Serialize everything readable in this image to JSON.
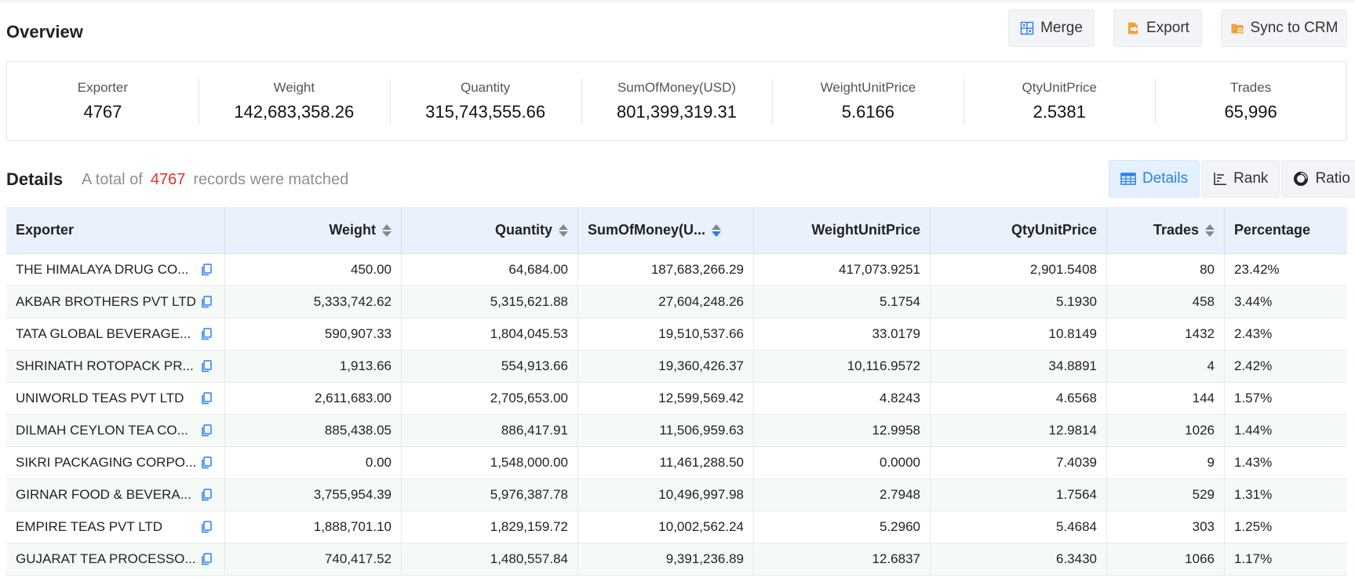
{
  "overview": {
    "title": "Overview",
    "buttons": {
      "merge": "Merge",
      "export": "Export",
      "sync": "Sync to CRM"
    },
    "stats": [
      {
        "label": "Exporter",
        "value": "4767"
      },
      {
        "label": "Weight",
        "value": "142,683,358.26"
      },
      {
        "label": "Quantity",
        "value": "315,743,555.66"
      },
      {
        "label": "SumOfMoney(USD)",
        "value": "801,399,319.31"
      },
      {
        "label": "WeightUnitPrice",
        "value": "5.6166"
      },
      {
        "label": "QtyUnitPrice",
        "value": "2.5381"
      },
      {
        "label": "Trades",
        "value": "65,996"
      }
    ]
  },
  "details": {
    "title": "Details",
    "note_prefix": "A total of",
    "count": "4767",
    "note_suffix": "records were matched",
    "tabs": {
      "details": "Details",
      "rank": "Rank",
      "ratio": "Ratio"
    }
  },
  "table": {
    "headers": [
      "Exporter",
      "Weight",
      "Quantity",
      "SumOfMoney(U...",
      "WeightUnitPrice",
      "QtyUnitPrice",
      "Trades",
      "Percentage"
    ],
    "rows": [
      [
        "THE HIMALAYA DRUG CO...",
        "450.00",
        "64,684.00",
        "187,683,266.29",
        "417,073.9251",
        "2,901.5408",
        "80",
        "23.42%"
      ],
      [
        "AKBAR BROTHERS PVT LTD",
        "5,333,742.62",
        "5,315,621.88",
        "27,604,248.26",
        "5.1754",
        "5.1930",
        "458",
        "3.44%"
      ],
      [
        "TATA GLOBAL BEVERAGE...",
        "590,907.33",
        "1,804,045.53",
        "19,510,537.66",
        "33.0179",
        "10.8149",
        "1432",
        "2.43%"
      ],
      [
        "SHRINATH ROTOPACK PR...",
        "1,913.66",
        "554,913.66",
        "19,360,426.37",
        "10,116.9572",
        "34.8891",
        "4",
        "2.42%"
      ],
      [
        "UNIWORLD TEAS PVT LTD",
        "2,611,683.00",
        "2,705,653.00",
        "12,599,569.42",
        "4.8243",
        "4.6568",
        "144",
        "1.57%"
      ],
      [
        "DILMAH CEYLON TEA CO...",
        "885,438.05",
        "886,417.91",
        "11,506,959.63",
        "12.9958",
        "12.9814",
        "1026",
        "1.44%"
      ],
      [
        "SIKRI PACKAGING CORPO...",
        "0.00",
        "1,548,000.00",
        "11,461,288.50",
        "0.0000",
        "7.4039",
        "9",
        "1.43%"
      ],
      [
        "GIRNAR FOOD & BEVERA...",
        "3,755,954.39",
        "5,976,387.78",
        "10,496,997.98",
        "2.7948",
        "1.7564",
        "529",
        "1.31%"
      ],
      [
        "EMPIRE TEAS PVT LTD",
        "1,888,701.10",
        "1,829,159.72",
        "10,002,562.24",
        "5.2960",
        "5.4684",
        "303",
        "1.25%"
      ],
      [
        "GUJARAT TEA PROCESSO...",
        "740,417.52",
        "1,480,557.84",
        "9,391,236.89",
        "12.6837",
        "6.3430",
        "1066",
        "1.17%"
      ]
    ]
  }
}
